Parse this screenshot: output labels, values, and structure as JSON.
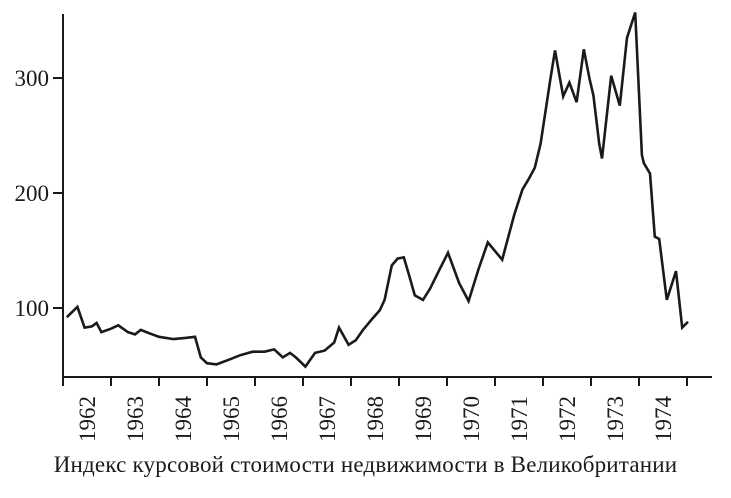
{
  "figure": {
    "caption": "Индекс курсовой стоимости недвижимости в Великобритании"
  },
  "colors": {
    "ink": "#1a1a1a",
    "background": "#ffffff"
  },
  "chart_data": {
    "type": "line",
    "title": "Индекс курсовой стоимости недвижимости в Великобритании",
    "xlabel": "",
    "ylabel": "",
    "grid": false,
    "legend": null,
    "x_range": [
      1962,
      1975
    ],
    "y_range": [
      40,
      360
    ],
    "y_ticks": [
      100,
      200,
      300
    ],
    "x_tick_labels": [
      "1962",
      "1963",
      "1964",
      "1965",
      "1966",
      "1967",
      "1968",
      "1969",
      "1970",
      "1971",
      "1972",
      "1973",
      "1974"
    ],
    "series": [
      {
        "name": "Индекс курсовой стоимости недвижимости",
        "points": [
          [
            1962.08,
            92
          ],
          [
            1962.3,
            101
          ],
          [
            1962.45,
            83
          ],
          [
            1962.6,
            84
          ],
          [
            1962.7,
            87
          ],
          [
            1962.8,
            79
          ],
          [
            1963.0,
            82
          ],
          [
            1963.15,
            85
          ],
          [
            1963.35,
            79
          ],
          [
            1963.5,
            77
          ],
          [
            1963.62,
            81
          ],
          [
            1963.8,
            78
          ],
          [
            1964.0,
            75
          ],
          [
            1964.3,
            73
          ],
          [
            1964.55,
            74
          ],
          [
            1964.75,
            75
          ],
          [
            1964.87,
            57
          ],
          [
            1965.0,
            52
          ],
          [
            1965.2,
            51
          ],
          [
            1965.45,
            55
          ],
          [
            1965.7,
            59
          ],
          [
            1965.95,
            62
          ],
          [
            1966.2,
            62
          ],
          [
            1966.4,
            64
          ],
          [
            1966.58,
            57
          ],
          [
            1966.73,
            61
          ],
          [
            1966.85,
            57
          ],
          [
            1967.05,
            49
          ],
          [
            1967.25,
            61
          ],
          [
            1967.45,
            63
          ],
          [
            1967.65,
            70
          ],
          [
            1967.75,
            83
          ],
          [
            1967.95,
            68
          ],
          [
            1968.1,
            72
          ],
          [
            1968.25,
            81
          ],
          [
            1968.45,
            91
          ],
          [
            1968.6,
            98
          ],
          [
            1968.7,
            107
          ],
          [
            1968.85,
            137
          ],
          [
            1968.97,
            143
          ],
          [
            1969.1,
            144
          ],
          [
            1969.2,
            130
          ],
          [
            1969.33,
            111
          ],
          [
            1969.5,
            107
          ],
          [
            1969.65,
            117
          ],
          [
            1969.85,
            134
          ],
          [
            1970.02,
            148
          ],
          [
            1970.25,
            122
          ],
          [
            1970.45,
            106
          ],
          [
            1970.65,
            133
          ],
          [
            1970.85,
            157
          ],
          [
            1971.15,
            142
          ],
          [
            1971.4,
            181
          ],
          [
            1971.57,
            203
          ],
          [
            1971.7,
            212
          ],
          [
            1971.83,
            222
          ],
          [
            1971.95,
            243
          ],
          [
            1972.15,
            298
          ],
          [
            1972.25,
            324
          ],
          [
            1972.42,
            284
          ],
          [
            1972.55,
            296
          ],
          [
            1972.7,
            279
          ],
          [
            1972.85,
            325
          ],
          [
            1972.97,
            299
          ],
          [
            1973.05,
            285
          ],
          [
            1973.17,
            243
          ],
          [
            1973.23,
            230
          ],
          [
            1973.42,
            302
          ],
          [
            1973.6,
            276
          ],
          [
            1973.75,
            335
          ],
          [
            1973.92,
            357
          ],
          [
            1974.06,
            233
          ],
          [
            1974.1,
            226
          ],
          [
            1974.23,
            217
          ],
          [
            1974.33,
            162
          ],
          [
            1974.42,
            160
          ],
          [
            1974.58,
            107
          ],
          [
            1974.77,
            132
          ],
          [
            1974.9,
            83
          ],
          [
            1975.02,
            88
          ]
        ]
      }
    ]
  }
}
